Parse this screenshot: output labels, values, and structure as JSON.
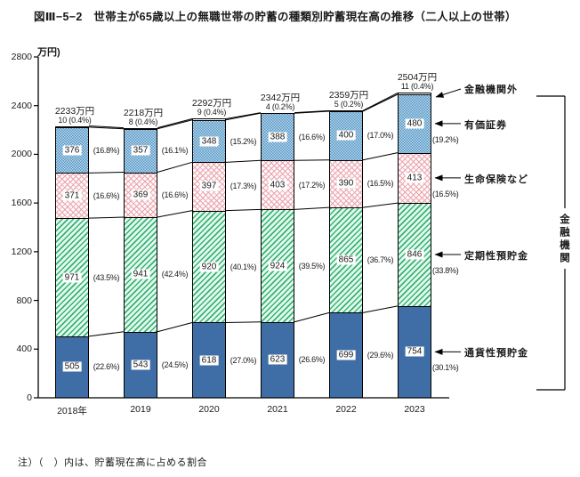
{
  "title": "図Ⅲ−5−2　世帯主が65歳以上の無職世帯の貯蓄の種類別貯蓄現在高の推移（二人以上の世帯）",
  "note": "注）（　）内は、貯蓄現在高に占める割合",
  "ylabel": "万円)",
  "legend": {
    "bracket_label": "金融機関",
    "items": [
      "金融機関外",
      "有価証券",
      "生命保険など",
      "定期性預貯金",
      "通貨性預貯金"
    ]
  },
  "colors": {
    "solid_blue": "#3f6ea6",
    "hatch_green": "#35b377",
    "hatch_green_bg": "#e4f8ec",
    "cross_pink": "#e7a3ad",
    "check_blue_dark": "#5795c3",
    "check_blue_light": "#b9d9ee",
    "line": "#000000"
  },
  "chart_data": {
    "type": "bar",
    "stacked": true,
    "unit": "万円",
    "grid": false,
    "ylim": [
      0,
      2800
    ],
    "ytick_step": 400,
    "yticks": [
      0,
      400,
      800,
      1200,
      1600,
      2000,
      2400,
      2800
    ],
    "categories": [
      "2018年",
      "2019",
      "2020",
      "2021",
      "2022",
      "2023"
    ],
    "totals": [
      2233,
      2218,
      2292,
      2342,
      2359,
      2504
    ],
    "total_suffix": "万円",
    "series": [
      {
        "name": "通貨性預貯金",
        "pattern": "p-solid",
        "values": [
          505,
          543,
          618,
          623,
          699,
          754
        ],
        "pcts": [
          "(22.6%)",
          "(24.5%)",
          "(27.0%)",
          "(26.6%)",
          "(29.6%)",
          "(30.1%)"
        ]
      },
      {
        "name": "定期性預貯金",
        "pattern": "p-hatch",
        "values": [
          971,
          941,
          920,
          924,
          865,
          846
        ],
        "pcts": [
          "(43.5%)",
          "(42.4%)",
          "(40.1%)",
          "(39.5%)",
          "(36.7%)",
          "(33.8%)"
        ]
      },
      {
        "name": "生命保険など",
        "pattern": "p-cross",
        "values": [
          371,
          369,
          397,
          403,
          390,
          413
        ],
        "pcts": [
          "(16.6%)",
          "(16.6%)",
          "(17.3%)",
          "(17.2%)",
          "(16.5%)",
          "(16.5%)"
        ]
      },
      {
        "name": "有価証券",
        "pattern": "p-check",
        "values": [
          376,
          357,
          348,
          388,
          400,
          480
        ],
        "pcts": [
          "(16.8%)",
          "(16.1%)",
          "(15.2%)",
          "(16.6%)",
          "(17.0%)",
          "(19.2%)"
        ]
      },
      {
        "name": "金融機関外",
        "pattern": "p-white",
        "outside": true,
        "values": [
          10,
          8,
          9,
          4,
          5,
          11
        ],
        "pcts": [
          "(0.4%)",
          "(0.4%)",
          "(0.4%)",
          "(0.2%)",
          "(0.2%)",
          "(0.4%)"
        ]
      }
    ]
  }
}
